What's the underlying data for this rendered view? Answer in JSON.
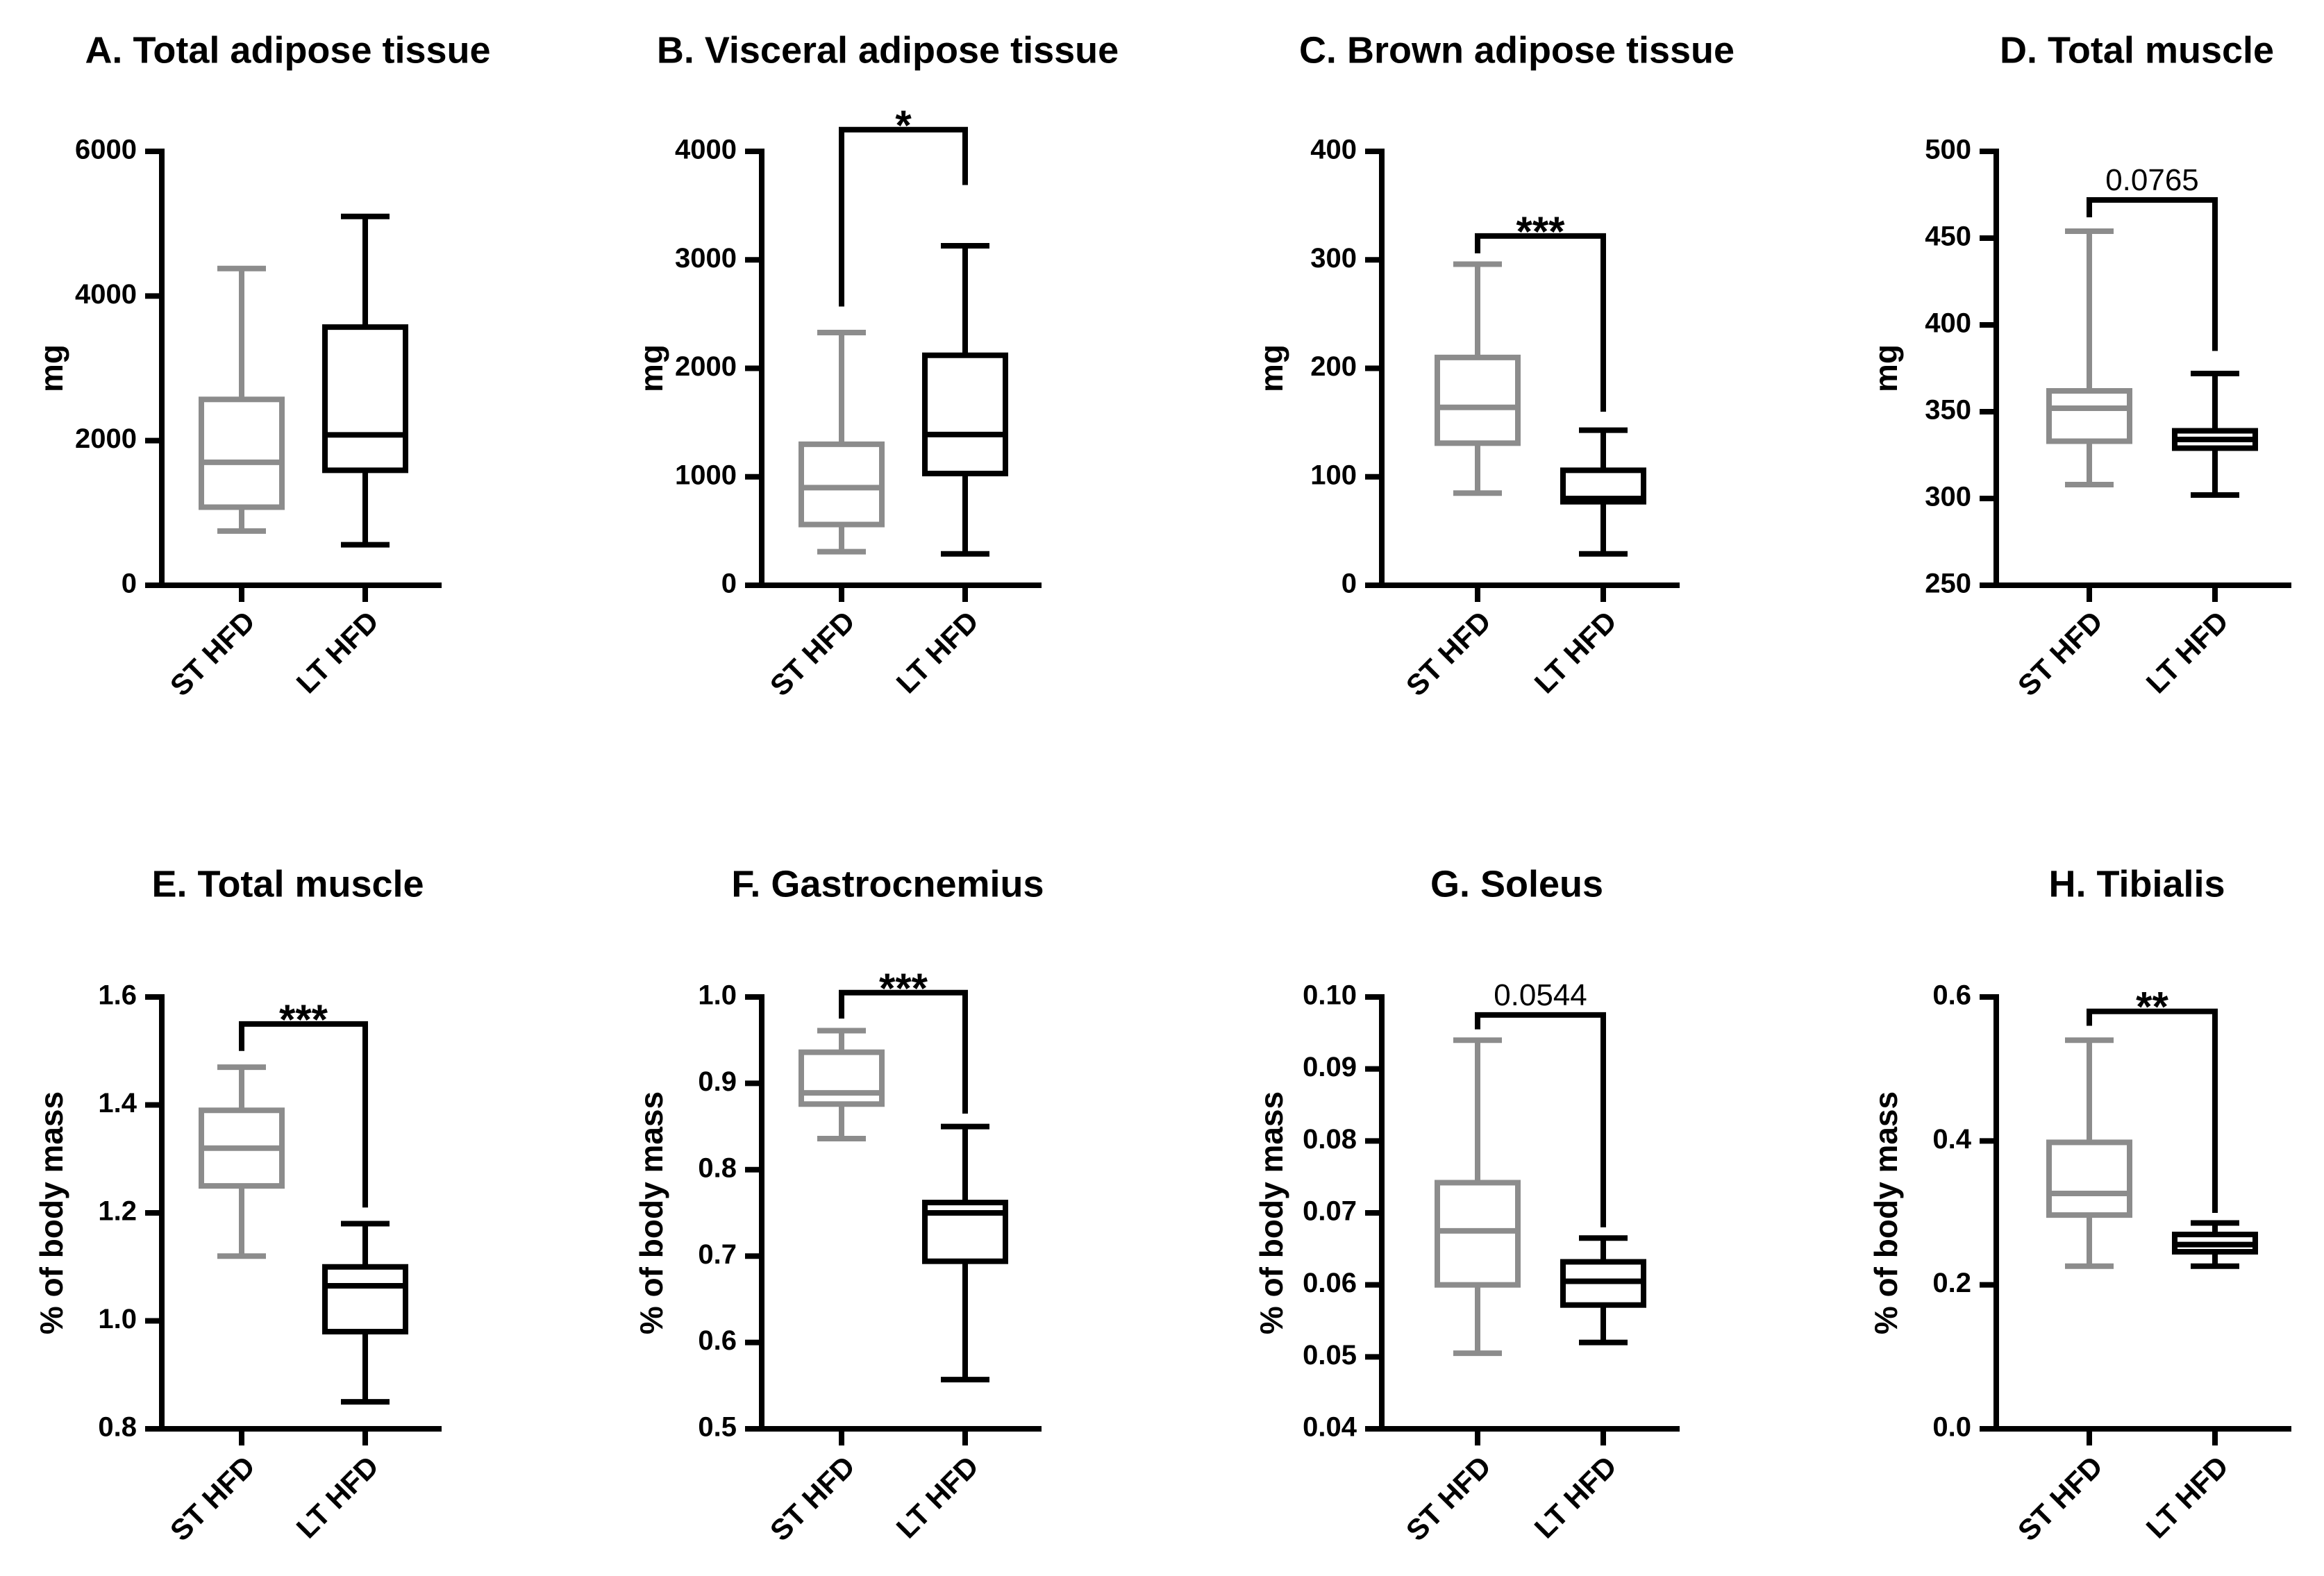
{
  "figure": {
    "groups": [
      "ST HFD",
      "LT HFD"
    ],
    "colors": {
      "ST HFD": "#8c8c8c",
      "LT HFD": "#000000"
    }
  },
  "chart_data": [
    {
      "type": "box",
      "title": "A. Total adipose tissue",
      "ylabel": "mg",
      "ylim": [
        0,
        6000
      ],
      "yticks": [
        0,
        2000,
        4000,
        6000
      ],
      "tick_labels": [
        "0",
        "2000",
        "4000",
        "6000"
      ],
      "categories": [
        "ST HFD",
        "LT HFD"
      ],
      "boxes": [
        {
          "group": "ST HFD",
          "min": 750,
          "q1": 1080,
          "median": 1700,
          "q3": 2570,
          "max": 4380
        },
        {
          "group": "LT HFD",
          "min": 560,
          "q1": 1590,
          "median": 2080,
          "q3": 3570,
          "max": 5100
        }
      ],
      "significance": null
    },
    {
      "type": "box",
      "title": "B. Visceral adipose tissue",
      "ylabel": "mg",
      "ylim": [
        0,
        4000
      ],
      "yticks": [
        0,
        1000,
        2000,
        3000,
        4000
      ],
      "tick_labels": [
        "0",
        "1000",
        "2000",
        "3000",
        "4000"
      ],
      "categories": [
        "ST HFD",
        "LT HFD"
      ],
      "boxes": [
        {
          "group": "ST HFD",
          "min": 310,
          "q1": 560,
          "median": 900,
          "q3": 1300,
          "max": 2330
        },
        {
          "group": "LT HFD",
          "min": 290,
          "q1": 1030,
          "median": 1390,
          "q3": 2120,
          "max": 3130
        }
      ],
      "significance": {
        "label": "*",
        "style": "star",
        "y": 4200,
        "left_end": 2570,
        "right_end": 3690
      }
    },
    {
      "type": "box",
      "title": "C. Brown adipose tissue",
      "ylabel": "mg",
      "ylim": [
        0,
        400
      ],
      "yticks": [
        0,
        100,
        200,
        300,
        400
      ],
      "tick_labels": [
        "0",
        "100",
        "200",
        "300",
        "400"
      ],
      "categories": [
        "ST HFD",
        "LT HFD"
      ],
      "boxes": [
        {
          "group": "ST HFD",
          "min": 85,
          "q1": 131,
          "median": 164,
          "q3": 210,
          "max": 296
        },
        {
          "group": "LT HFD",
          "min": 29,
          "q1": 77,
          "median": 80,
          "q3": 106,
          "max": 143
        }
      ],
      "significance": {
        "label": "***",
        "style": "star",
        "y": 322,
        "left_end": 306,
        "right_end": 160
      }
    },
    {
      "type": "box",
      "title": "D. Total muscle",
      "ylabel": "mg",
      "ylim": [
        250,
        500
      ],
      "yticks": [
        250,
        300,
        350,
        400,
        450,
        500
      ],
      "tick_labels": [
        "250",
        "300",
        "350",
        "400",
        "450",
        "500"
      ],
      "categories": [
        "ST HFD",
        "LT HFD"
      ],
      "boxes": [
        {
          "group": "ST HFD",
          "min": 308,
          "q1": 333,
          "median": 352,
          "q3": 362,
          "max": 454
        },
        {
          "group": "LT HFD",
          "min": 302,
          "q1": 329,
          "median": 334,
          "q3": 339,
          "max": 372
        }
      ],
      "significance": {
        "label": "0.0765",
        "style": "number",
        "y": 472,
        "left_end": 462,
        "right_end": 385
      }
    },
    {
      "type": "box",
      "title": "E. Total muscle",
      "ylabel": "% of body mass",
      "ylim": [
        0.8,
        1.6
      ],
      "yticks": [
        0.8,
        1.0,
        1.2,
        1.4,
        1.6
      ],
      "tick_labels": [
        "0.8",
        "1.0",
        "1.2",
        "1.4",
        "1.6"
      ],
      "categories": [
        "ST HFD",
        "LT HFD"
      ],
      "boxes": [
        {
          "group": "ST HFD",
          "min": 1.12,
          "q1": 1.25,
          "median": 1.32,
          "q3": 1.39,
          "max": 1.47
        },
        {
          "group": "LT HFD",
          "min": 0.85,
          "q1": 0.98,
          "median": 1.065,
          "q3": 1.1,
          "max": 1.18
        }
      ],
      "significance": {
        "label": "***",
        "style": "star",
        "y": 1.55,
        "left_end": 1.5,
        "right_end": 1.21
      }
    },
    {
      "type": "box",
      "title": "F. Gastrocnemius",
      "ylabel": "% of body mass",
      "ylim": [
        0.5,
        1.0
      ],
      "yticks": [
        0.5,
        0.6,
        0.7,
        0.8,
        0.9,
        1.0
      ],
      "tick_labels": [
        "0.5",
        "0.6",
        "0.7",
        "0.8",
        "0.9",
        "1.0"
      ],
      "categories": [
        "ST HFD",
        "LT HFD"
      ],
      "boxes": [
        {
          "group": "ST HFD",
          "min": 0.836,
          "q1": 0.876,
          "median": 0.889,
          "q3": 0.936,
          "max": 0.961
        },
        {
          "group": "LT HFD",
          "min": 0.557,
          "q1": 0.694,
          "median": 0.75,
          "q3": 0.762,
          "max": 0.85
        }
      ],
      "significance": {
        "label": "***",
        "style": "star",
        "y": 1.005,
        "left_end": 0.975,
        "right_end": 0.865
      }
    },
    {
      "type": "box",
      "title": "G. Soleus",
      "ylabel": "% of body mass",
      "ylim": [
        0.04,
        0.1
      ],
      "yticks": [
        0.04,
        0.05,
        0.06,
        0.07,
        0.08,
        0.09,
        0.1
      ],
      "tick_labels": [
        "0.04",
        "0.05",
        "0.06",
        "0.07",
        "0.08",
        "0.09",
        "0.10"
      ],
      "categories": [
        "ST HFD",
        "LT HFD"
      ],
      "boxes": [
        {
          "group": "ST HFD",
          "min": 0.0505,
          "q1": 0.06,
          "median": 0.0675,
          "q3": 0.0742,
          "max": 0.094
        },
        {
          "group": "LT HFD",
          "min": 0.052,
          "q1": 0.0572,
          "median": 0.0605,
          "q3": 0.0632,
          "max": 0.0665
        }
      ],
      "significance": {
        "label": "0.0544",
        "style": "number",
        "y": 0.0975,
        "left_end": 0.0955,
        "right_end": 0.068
      }
    },
    {
      "type": "box",
      "title": "H. Tibialis",
      "ylabel": "% of body mass",
      "ylim": [
        0.0,
        0.6
      ],
      "yticks": [
        0.0,
        0.2,
        0.4,
        0.6
      ],
      "tick_labels": [
        "0.0",
        "0.2",
        "0.4",
        "0.6"
      ],
      "categories": [
        "ST HFD",
        "LT HFD"
      ],
      "boxes": [
        {
          "group": "ST HFD",
          "min": 0.226,
          "q1": 0.297,
          "median": 0.327,
          "q3": 0.398,
          "max": 0.54
        },
        {
          "group": "LT HFD",
          "min": 0.226,
          "q1": 0.246,
          "median": 0.256,
          "q3": 0.27,
          "max": 0.286
        }
      ],
      "significance": {
        "label": "**",
        "style": "star",
        "y": 0.58,
        "left_end": 0.56,
        "right_end": 0.3
      }
    }
  ]
}
